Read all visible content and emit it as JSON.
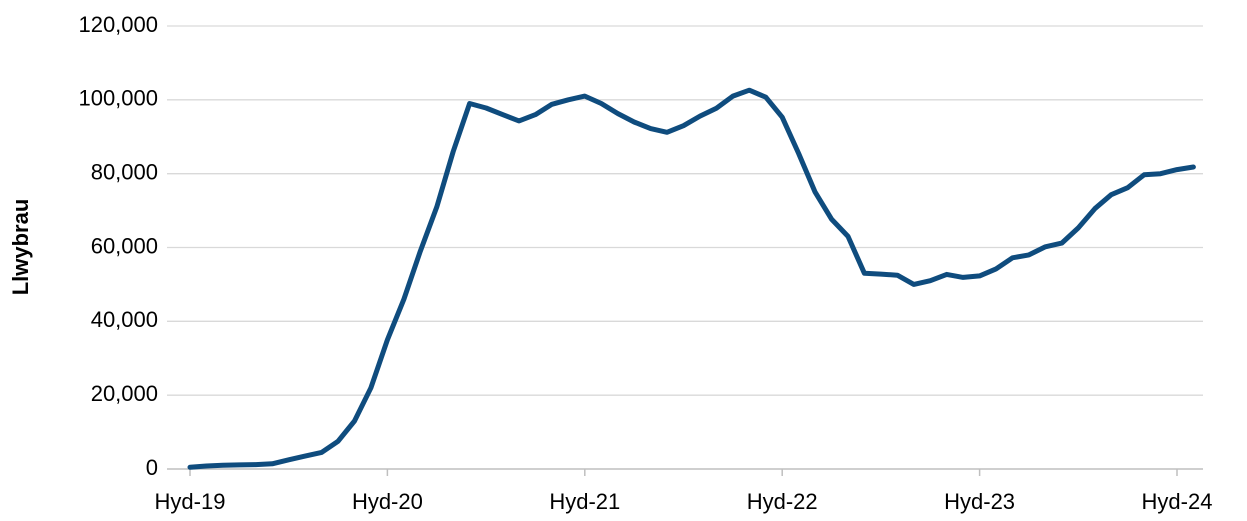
{
  "chart_data": {
    "type": "line",
    "y_label": "Llwybrau",
    "categories": [
      "Hyd-19",
      null,
      null,
      null,
      null,
      null,
      null,
      null,
      null,
      null,
      null,
      null,
      "Hyd-20",
      null,
      null,
      null,
      null,
      null,
      null,
      null,
      null,
      null,
      null,
      null,
      "Hyd-21",
      null,
      null,
      null,
      null,
      null,
      null,
      null,
      null,
      null,
      null,
      null,
      "Hyd-22",
      null,
      null,
      null,
      null,
      null,
      null,
      null,
      null,
      null,
      null,
      null,
      "Hyd-23",
      null,
      null,
      null,
      null,
      null,
      null,
      null,
      null,
      null,
      null,
      null,
      "Hyd-24",
      null
    ],
    "series": [
      {
        "name": "Llwybrau",
        "color": "#0f4c7e",
        "values": [
          500,
          800,
          1000,
          1100,
          1200,
          1400,
          2500,
          3500,
          4500,
          7500,
          13000,
          22000,
          35000,
          46000,
          59000,
          71000,
          86000,
          99000,
          97800,
          96000,
          94300,
          96000,
          98800,
          100000,
          101000,
          99000,
          96300,
          94000,
          92200,
          91200,
          93000,
          95600,
          97700,
          101000,
          102600,
          100700,
          95300,
          85500,
          75000,
          67700,
          63000,
          53000,
          52800,
          52500,
          50000,
          51000,
          52700,
          51900,
          52300,
          54200,
          57200,
          58000,
          60200,
          61200,
          65300,
          70500,
          74300,
          76200,
          79700,
          80000,
          81100,
          81800
        ]
      }
    ],
    "ylim": [
      0,
      120000
    ],
    "yticks": [
      {
        "value": 0,
        "label": "0"
      },
      {
        "value": 20000,
        "label": "20,000"
      },
      {
        "value": 40000,
        "label": "40,000"
      },
      {
        "value": 60000,
        "label": "60,000"
      },
      {
        "value": 80000,
        "label": "80,000"
      },
      {
        "value": 100000,
        "label": "100,000"
      },
      {
        "value": 120000,
        "label": "120,000"
      }
    ],
    "grid": true
  }
}
